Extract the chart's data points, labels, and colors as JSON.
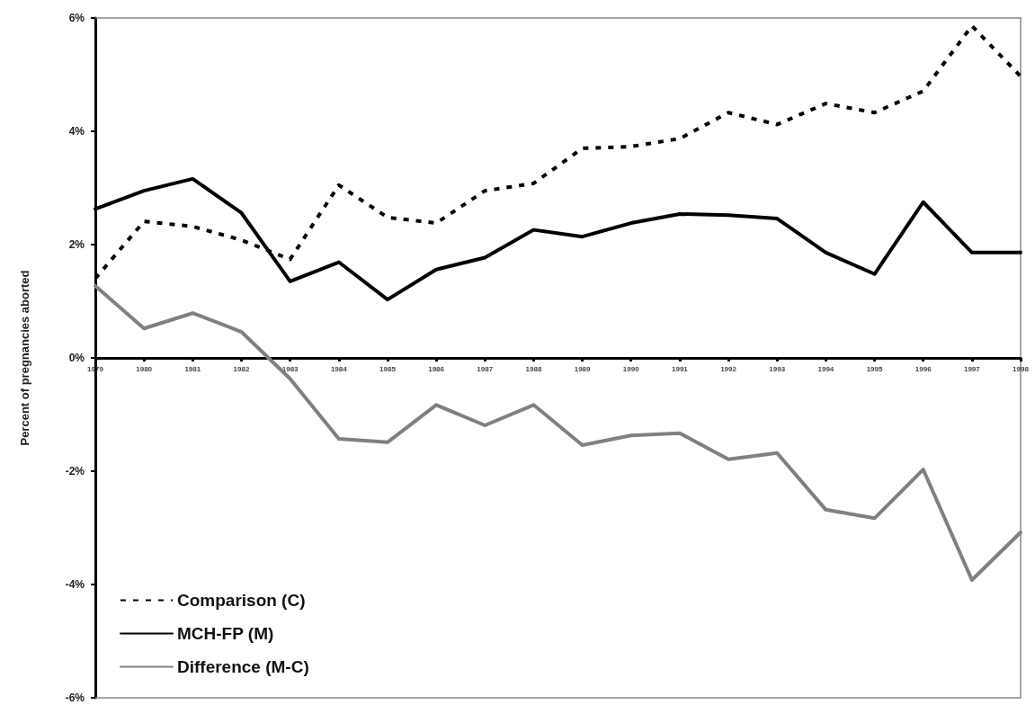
{
  "chart_data": {
    "type": "line",
    "ylabel": "Percent of pregnancies aborted",
    "categories": [
      "1979",
      "1980",
      "1981",
      "1982",
      "1983",
      "1984",
      "1985",
      "1986",
      "1987",
      "1988",
      "1989",
      "1990",
      "1991",
      "1992",
      "1993",
      "1994",
      "1995",
      "1996",
      "1997",
      "1998"
    ],
    "series": [
      {
        "name": "Comparison (C)",
        "color": "#000000",
        "line_style": "dashed",
        "values": [
          1.4,
          2.41,
          2.32,
          2.08,
          1.74,
          3.05,
          2.48,
          2.38,
          2.95,
          3.08,
          3.7,
          3.73,
          3.87,
          4.33,
          4.12,
          4.49,
          4.33,
          4.71,
          5.86,
          4.97
        ]
      },
      {
        "name": "MCH-FP (M)",
        "color": "#000000",
        "line_style": "solid",
        "values": [
          2.63,
          2.95,
          3.16,
          2.56,
          1.35,
          1.69,
          1.03,
          1.56,
          1.77,
          2.26,
          2.14,
          2.38,
          2.54,
          2.52,
          2.46,
          1.86,
          1.48,
          2.75,
          1.86,
          1.86
        ]
      },
      {
        "name": "Difference (M-C)",
        "color": "#808080",
        "line_style": "solid",
        "values": [
          1.27,
          0.52,
          0.79,
          0.46,
          -0.37,
          -1.43,
          -1.49,
          -0.83,
          -1.19,
          -0.83,
          -1.54,
          -1.37,
          -1.33,
          -1.79,
          -1.68,
          -2.68,
          -2.83,
          -1.97,
          -3.92,
          -3.08
        ]
      }
    ],
    "ylim": [
      -6,
      6
    ],
    "yticks": [
      {
        "value": -6,
        "label": "-6%"
      },
      {
        "value": -4,
        "label": "-4%"
      },
      {
        "value": -2,
        "label": "-2%"
      },
      {
        "value": 0,
        "label": "0%"
      },
      {
        "value": 2,
        "label": "2%"
      },
      {
        "value": 4,
        "label": "4%"
      },
      {
        "value": 6,
        "label": "6%"
      }
    ],
    "grid": false,
    "legend": "bottom left",
    "marker": "none"
  }
}
